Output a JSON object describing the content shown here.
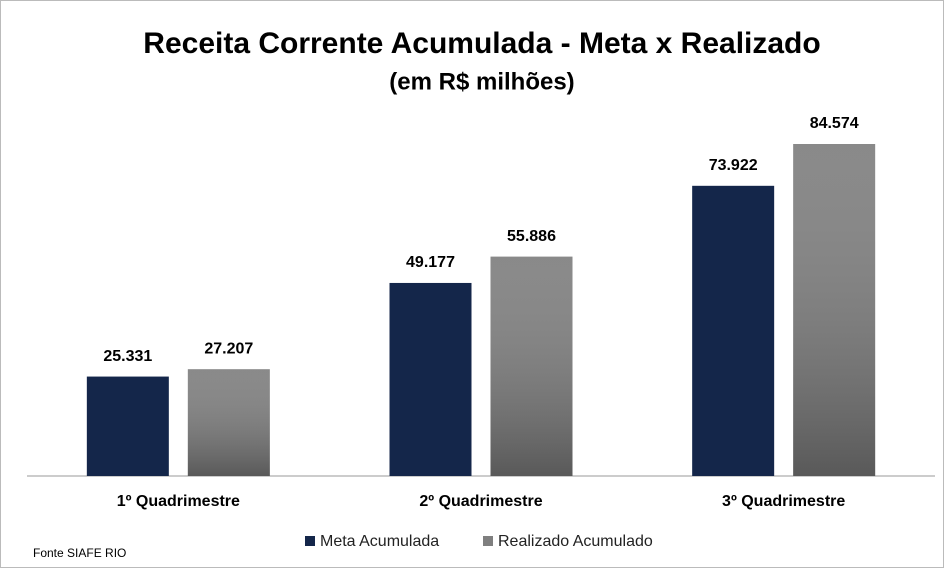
{
  "chart_data": {
    "type": "bar",
    "title": "Receita Corrente Acumulada - Meta x Realizado",
    "subtitle": "(em R$ milhões)",
    "categories": [
      "1º Quadrimestre",
      "2º Quadrimestre",
      "3º Quadrimestre"
    ],
    "series": [
      {
        "name": "Meta Acumulada",
        "color": "#14264a",
        "values": [
          25331,
          49177,
          73922
        ],
        "value_labels": [
          "25.331",
          "49.177",
          "73.922"
        ]
      },
      {
        "name": "Realizado Acumulado",
        "color": "#7f7f7f",
        "values": [
          27207,
          55886,
          84574
        ],
        "value_labels": [
          "27.207",
          "55.886",
          "84.574"
        ]
      }
    ],
    "source": "Fonte SIAFE RIO"
  }
}
